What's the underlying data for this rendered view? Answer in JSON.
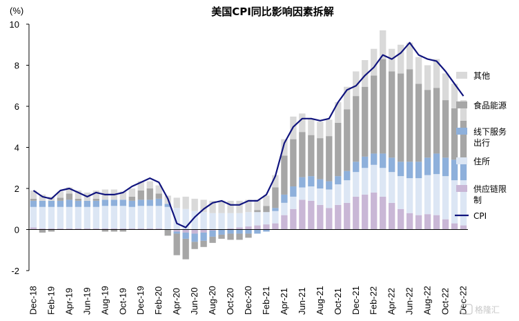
{
  "chart_data": {
    "type": "bar",
    "title": "美国CPI同比影响因素拆解",
    "unit_label": "(%)",
    "ylim": [
      -2,
      10
    ],
    "yticks": [
      "-2",
      "0",
      "2",
      "4",
      "6",
      "8",
      "10"
    ],
    "x": [
      "Dec-18",
      "Jan-19",
      "Feb-19",
      "Mar-19",
      "Apr-19",
      "May-19",
      "Jun-19",
      "Jul-19",
      "Aug-19",
      "Sep-19",
      "Oct-19",
      "Nov-19",
      "Dec-19",
      "Jan-20",
      "Feb-20",
      "Mar-20",
      "Apr-20",
      "May-20",
      "Jun-20",
      "Jul-20",
      "Aug-20",
      "Sep-20",
      "Oct-20",
      "Nov-20",
      "Dec-20",
      "Jan-21",
      "Feb-21",
      "Mar-21",
      "Apr-21",
      "May-21",
      "Jun-21",
      "Jul-21",
      "Aug-21",
      "Sep-21",
      "Oct-21",
      "Nov-21",
      "Dec-21",
      "Jan-22",
      "Feb-22",
      "Mar-22",
      "Apr-22",
      "May-22",
      "Jun-22",
      "Jul-22",
      "Aug-22",
      "Sep-22",
      "Oct-22",
      "Nov-22",
      "Dec-22"
    ],
    "xtick_labels": [
      "Dec-18",
      "",
      "Feb-19",
      "",
      "Apr-19",
      "",
      "Jun-19",
      "",
      "Aug-19",
      "",
      "Oct-19",
      "",
      "Dec-19",
      "",
      "Feb-20",
      "",
      "Apr-20",
      "",
      "Jun-20",
      "",
      "Aug-20",
      "",
      "Oct-20",
      "",
      "Dec-20",
      "",
      "Feb-21",
      "",
      "Apr-21",
      "",
      "Jun-21",
      "",
      "Aug-21",
      "",
      "Oct-21",
      "",
      "Dec-21",
      "",
      "Feb-22",
      "",
      "Apr-22",
      "",
      "Jun-22",
      "",
      "Aug-22",
      "",
      "Oct-22",
      "",
      "Dec-22"
    ],
    "stacked": true,
    "legend_position": "right",
    "series": [
      {
        "name": "供应链限制",
        "type": "bar",
        "color": "#c9b7d6",
        "values": [
          0.1,
          0.05,
          0.05,
          0.05,
          0.05,
          0.05,
          0.05,
          0.05,
          0.05,
          0.05,
          0.05,
          0.05,
          0.05,
          0.05,
          0.05,
          0,
          -0.1,
          -0.15,
          -0.2,
          -0.15,
          -0.05,
          0,
          0.05,
          0.1,
          0.15,
          0.2,
          0.25,
          0.3,
          0.7,
          1.0,
          1.45,
          1.4,
          1.2,
          1.05,
          1.2,
          1.3,
          1.6,
          1.7,
          1.8,
          1.6,
          1.3,
          1.0,
          0.8,
          0.7,
          0.75,
          0.7,
          0.5,
          0.3,
          0.2
        ]
      },
      {
        "name": "住所",
        "type": "bar",
        "color": "#dce6f4",
        "values": [
          1.0,
          1.05,
          1.05,
          1.05,
          1.05,
          1.05,
          1.05,
          1.05,
          1.1,
          1.1,
          1.1,
          1.05,
          1.1,
          1.1,
          1.1,
          1.1,
          1.05,
          1.0,
          0.9,
          0.85,
          0.8,
          0.8,
          0.75,
          0.7,
          0.7,
          0.65,
          0.6,
          0.6,
          0.6,
          0.6,
          0.6,
          0.7,
          0.8,
          0.9,
          1.0,
          1.1,
          1.2,
          1.3,
          1.35,
          1.4,
          1.5,
          1.6,
          1.7,
          1.8,
          1.9,
          2.0,
          2.1,
          2.1,
          2.2
        ]
      },
      {
        "name": "线下服务出行",
        "type": "bar",
        "color": "#8eb0db",
        "values": [
          0.3,
          0.3,
          0.3,
          0.3,
          0.35,
          0.3,
          0.3,
          0.3,
          0.3,
          0.3,
          0.3,
          0.3,
          0.3,
          0.3,
          0.35,
          0.15,
          -0.1,
          -0.3,
          -0.4,
          -0.4,
          -0.3,
          -0.25,
          -0.2,
          -0.2,
          -0.2,
          -0.2,
          -0.1,
          0.15,
          0.4,
          0.5,
          0.5,
          0.5,
          0.45,
          0.4,
          0.4,
          0.45,
          0.5,
          0.55,
          0.55,
          0.7,
          0.7,
          0.7,
          0.8,
          0.8,
          0.85,
          1.0,
          0.9,
          1.0,
          0.9
        ]
      },
      {
        "name": "食品能源",
        "type": "bar",
        "color": "#a6a6a6",
        "values": [
          0.1,
          -0.15,
          -0.1,
          0.15,
          0.3,
          0.1,
          0.0,
          0.1,
          -0.1,
          -0.1,
          -0.1,
          0.2,
          0.45,
          0.55,
          0.25,
          -0.3,
          -1.05,
          -1.0,
          -0.35,
          -0.3,
          -0.3,
          -0.2,
          -0.3,
          -0.3,
          -0.2,
          0.1,
          0.3,
          1.0,
          1.9,
          2.3,
          2.2,
          2.0,
          2.0,
          2.2,
          2.6,
          3.0,
          3.2,
          3.4,
          3.8,
          4.6,
          4.2,
          4.3,
          4.5,
          3.8,
          3.3,
          3.2,
          2.8,
          2.5,
          2.0
        ]
      },
      {
        "name": "其他",
        "type": "bar",
        "color": "#d9d9d9",
        "values": [
          0.4,
          0.3,
          0.2,
          0.3,
          0.3,
          0.4,
          0.4,
          0.4,
          0.5,
          0.5,
          0.4,
          0.4,
          0.45,
          0.35,
          0.4,
          0.4,
          0.5,
          0.6,
          0.6,
          0.6,
          0.6,
          0.6,
          0.6,
          0.6,
          0.6,
          0.5,
          0.5,
          0.6,
          0.8,
          1.1,
          0.9,
          0.8,
          0.8,
          0.8,
          1.0,
          1.1,
          1.2,
          1.3,
          1.3,
          1.4,
          1.1,
          1.4,
          1.3,
          1.3,
          1.2,
          1.4,
          1.3,
          1.2,
          1.0
        ]
      },
      {
        "name": "CPI",
        "type": "line",
        "color": "#10147e",
        "values": [
          1.9,
          1.6,
          1.5,
          1.9,
          2.0,
          1.8,
          1.6,
          1.8,
          1.7,
          1.7,
          1.8,
          2.1,
          2.3,
          2.5,
          2.3,
          1.5,
          0.3,
          0.1,
          0.6,
          1.0,
          1.3,
          1.4,
          1.2,
          1.2,
          1.4,
          1.4,
          1.7,
          2.6,
          4.2,
          5.0,
          5.4,
          5.4,
          5.3,
          5.4,
          6.2,
          6.8,
          7.0,
          7.5,
          7.9,
          8.5,
          8.3,
          8.6,
          9.1,
          8.5,
          8.3,
          8.2,
          7.7,
          7.1,
          6.5
        ]
      }
    ]
  },
  "legend": {
    "items": [
      {
        "label": "其他",
        "swatch": "#d9d9d9",
        "kind": "box"
      },
      {
        "label": "食品能源",
        "swatch": "#a6a6a6",
        "kind": "box"
      },
      {
        "label": "线下服务\n出行",
        "swatch": "#8eb0db",
        "kind": "box"
      },
      {
        "label": "住所",
        "swatch": "#dce6f4",
        "kind": "box"
      },
      {
        "label": "供应链限\n制",
        "swatch": "#c9b7d6",
        "kind": "box"
      },
      {
        "label": "CPI",
        "swatch": "#10147e",
        "kind": "line"
      }
    ]
  },
  "watermark": {
    "text": "格隆汇"
  }
}
